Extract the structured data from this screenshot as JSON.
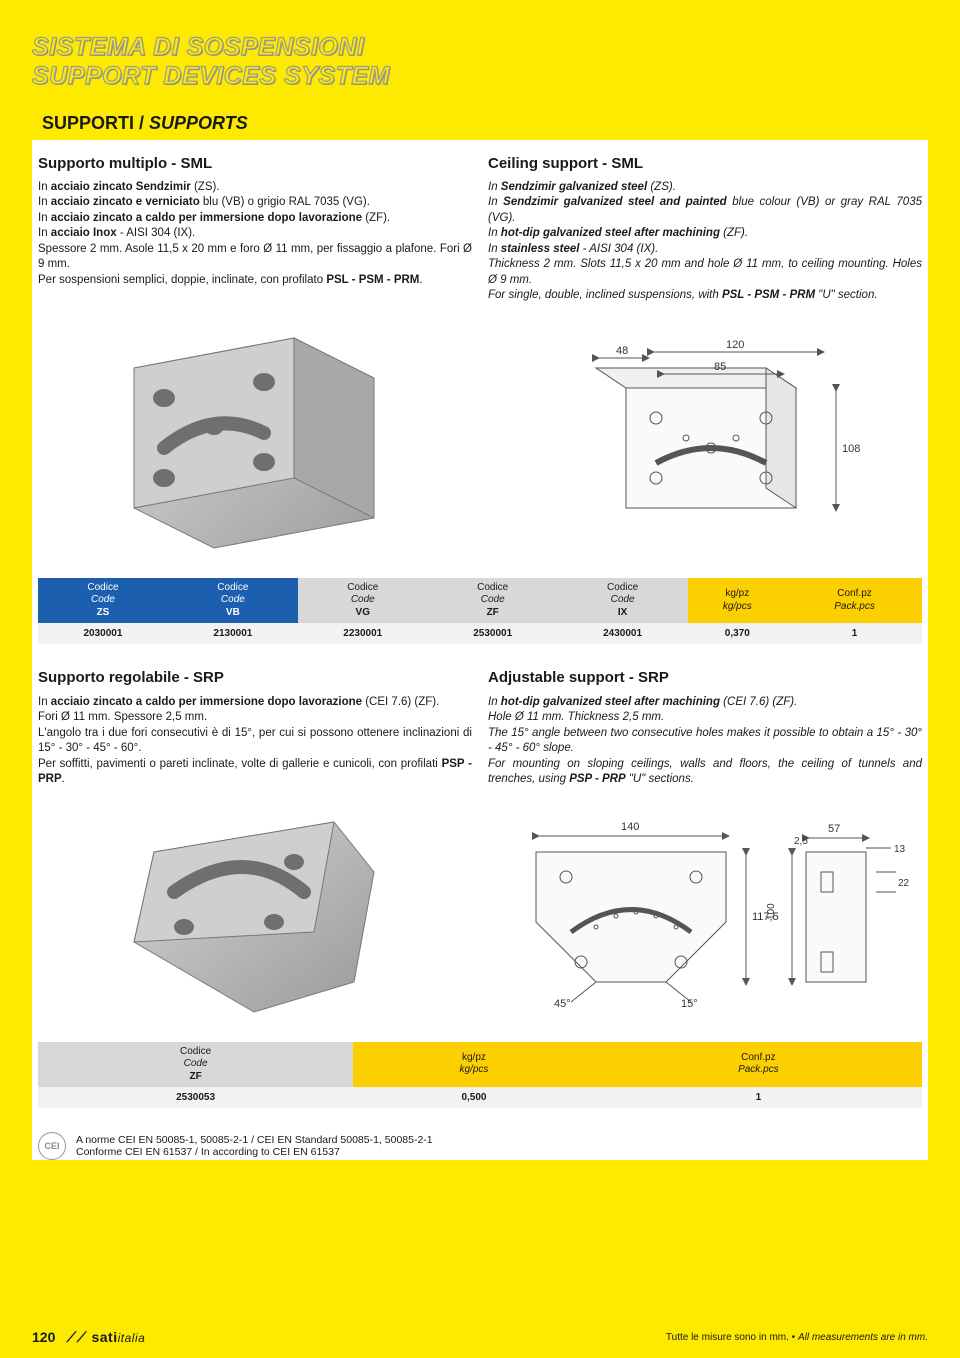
{
  "header": {
    "line1": "SISTEMA DI SOSPENSIONI",
    "line2": "SUPPORT DEVICES SYSTEM"
  },
  "section_band": {
    "it": "SUPPORTI",
    "sep": " / ",
    "en": "SUPPORTS"
  },
  "sml": {
    "it": {
      "title": "Supporto multiplo - SML",
      "p1a": "In ",
      "p1b": "acciaio zincato Sendzimir",
      "p1c": " (ZS).",
      "p2a": "In ",
      "p2b": "acciaio zincato e verniciato",
      "p2c": " blu (VB) o grigio RAL 7035 (VG).",
      "p3a": "In ",
      "p3b": "acciaio zincato a caldo per immersione dopo lavorazione",
      "p3c": " (ZF).",
      "p4a": "In ",
      "p4b": "acciaio Inox",
      "p4c": " - AISI 304 (IX).",
      "p5": "Spessore 2 mm. Asole 11,5 x 20 mm e foro Ø 11 mm, per fissaggio a plafone. Fori Ø 9 mm.",
      "p6a": "Per sospensioni semplici, doppie, inclinate, con profilato ",
      "p6b": "PSL - PSM - PRM",
      "p6c": "."
    },
    "en": {
      "title": "Ceiling support - SML",
      "p1a": "In ",
      "p1b": "Sendzimir galvanized steel",
      "p1c": " (ZS).",
      "p2a": "In ",
      "p2b": "Sendzimir galvanized steel and painted",
      "p2c": " blue colour (VB) or gray RAL 7035 (VG).",
      "p3a": "In ",
      "p3b": "hot-dip galvanized steel after machining",
      "p3c": " (ZF).",
      "p4a": "In ",
      "p4b": "stainless steel",
      "p4c": " - AISI 304 (IX).",
      "p5": "Thickness 2 mm. Slots 11,5 x 20 mm and hole Ø 11 mm, to ceiling mounting. Holes Ø 9 mm.",
      "p6a": "For single, double, inclined suspensions, with ",
      "p6b": "PSL - PSM - PRM",
      "p6c": " \"U\" section."
    },
    "diagram": {
      "d_48": "48",
      "d_120": "120",
      "d_85": "85",
      "d_108": "108"
    }
  },
  "table1": {
    "headers": [
      {
        "l1": "Codice",
        "l2": "Code",
        "l3": "ZS",
        "cls": "th-blue"
      },
      {
        "l1": "Codice",
        "l2": "Code",
        "l3": "VB",
        "cls": "th-blue"
      },
      {
        "l1": "Codice",
        "l2": "Code",
        "l3": "VG",
        "cls": "th-gray"
      },
      {
        "l1": "Codice",
        "l2": "Code",
        "l3": "ZF",
        "cls": "th-gray"
      },
      {
        "l1": "Codice",
        "l2": "Code",
        "l3": "IX",
        "cls": "th-gray"
      },
      {
        "l1": "kg/pz",
        "l2": "kg/pcs",
        "l3": "",
        "cls": "th-yellow"
      },
      {
        "l1": "Conf.pz",
        "l2": "Pack.pcs",
        "l3": "",
        "cls": "th-yellow"
      }
    ],
    "row": [
      "2030001",
      "2130001",
      "2230001",
      "2530001",
      "2430001",
      "0,370",
      "1"
    ]
  },
  "srp": {
    "it": {
      "title": "Supporto regolabile - SRP",
      "p1a": "In ",
      "p1b": "acciaio zincato a caldo per immersione dopo lavorazione",
      "p1c": " (CEI 7.6) (ZF).",
      "p2": "Fori Ø 11 mm. Spessore 2,5 mm.",
      "p3": "L'angolo tra i due fori consecutivi è di 15°, per cui si possono ottenere inclinazioni di 15° - 30° - 45° - 60°.",
      "p4a": "Per soffitti, pavimenti o pareti inclinate, volte di gallerie e cunicoli, con profilati ",
      "p4b": "PSP - PRP",
      "p4c": "."
    },
    "en": {
      "title": "Adjustable support - SRP",
      "p1a": "In ",
      "p1b": "hot-dip galvanized steel after machining",
      "p1c": " (CEI 7.6) (ZF).",
      "p2": "Hole Ø 11 mm. Thickness 2,5 mm.",
      "p3": "The 15° angle between two consecutive holes makes it possible to obtain a 15° - 30° - 45° - 60° slope.",
      "p4a": "For mounting on sloping ceilings, walls and floors, the ceiling of tunnels and trenches, using ",
      "p4b": "PSP - PRP",
      "p4c": " \"U\" sections."
    },
    "diagram": {
      "d_140": "140",
      "d_1175": "117,5",
      "d_45": "45°",
      "d_15": "15°",
      "d_57": "57",
      "d_25": "2,5",
      "d_13": "13",
      "d_100": "100",
      "d_22": "22"
    }
  },
  "table2": {
    "headers": [
      {
        "l1": "Codice",
        "l2": "Code",
        "l3": "ZF",
        "cls": "th-gray"
      },
      {
        "l1": "kg/pz",
        "l2": "kg/pcs",
        "l3": "",
        "cls": "th-yellow"
      },
      {
        "l1": "Conf.pz",
        "l2": "Pack.pcs",
        "l3": "",
        "cls": "th-yellow"
      }
    ],
    "row": [
      "2530053",
      "0,500",
      "1"
    ]
  },
  "norms": {
    "line1": "A norme CEI EN 50085-1, 50085-2-1 / CEI EN Standard 50085-1, 50085-2-1",
    "line2": "Conforme CEI EN 61537 / In according to CEI EN 61537"
  },
  "footer": {
    "page": "120",
    "brand_pre": "⟋⟋ ",
    "brand": "sati",
    "brand_suf": "italia",
    "note_it": "Tutte le misure sono in mm. • ",
    "note_en": "All measurements are in mm."
  },
  "colors": {
    "yellow_bg": "#fdea00",
    "amber": "#fccf00",
    "blue": "#1b5fae",
    "gray_th": "#d8d8d8",
    "row_bg": "#f2f2f2",
    "metal_light": "#c8c8c8",
    "metal_dark": "#9a9a9a",
    "line": "#666666"
  }
}
